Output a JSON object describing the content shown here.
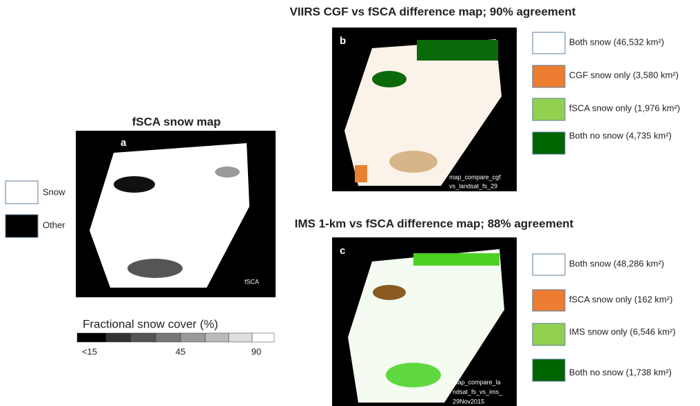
{
  "panel_a": {
    "title": "fSCA snow map",
    "letter": "a",
    "map_label": "fSCA",
    "legend": [
      "Snow",
      "Other"
    ],
    "colorbar": {
      "title": "Fractional snow cover (%)",
      "tick_labels": [
        "<15",
        "45",
        "90"
      ]
    }
  },
  "panel_b": {
    "title": "VIIRS CGF vs fSCA difference map; 90% agreement",
    "letter": "b",
    "map_label": [
      "map_compare_cgf",
      "vs_landsat_fs_29"
    ],
    "legend": [
      "Both snow (46,532 km²)",
      "CGF snow only (3,580 km²)",
      "fSCA snow only (1,976 km²)",
      "Both no snow (4,735 km²)"
    ]
  },
  "panel_c": {
    "title": "IMS 1-km vs fSCA difference map; 88% agreement",
    "letter": "c",
    "map_label": [
      "map_compare_la",
      "ndsat_fs_vs_ims_",
      "29Nov2015"
    ],
    "legend": [
      "Both snow (48,286 km²)",
      "fSCA snow only (162 km²)",
      "IMS snow only (6,546 km²)",
      "Both no snow (1,738 km²)"
    ]
  }
}
